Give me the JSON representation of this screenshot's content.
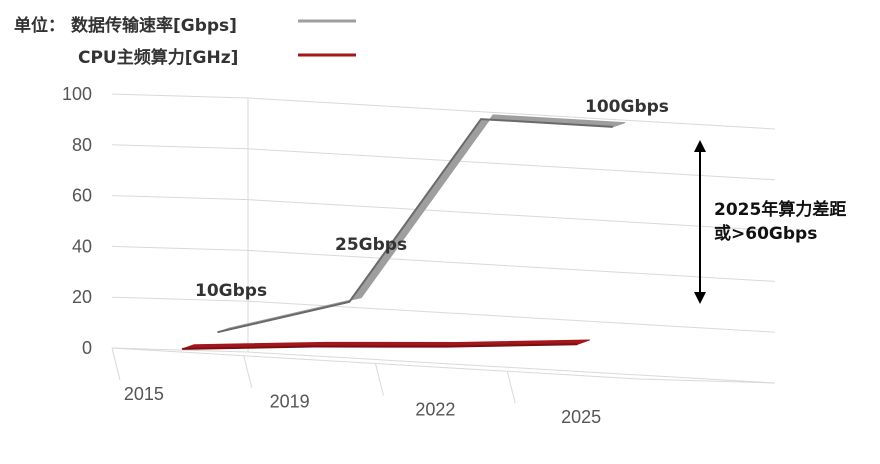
{
  "chart_data": {
    "type": "line",
    "style": "3d-ribbon",
    "unit_label": "单位：",
    "categories": [
      "2015",
      "2019",
      "2022",
      "2025"
    ],
    "series": [
      {
        "name": "数据传输速率[Gbps]",
        "values": [
          10,
          25,
          100,
          100
        ],
        "color": "#9e9e9e"
      },
      {
        "name": "CPU主频算力[GHz]",
        "values": [
          3,
          7,
          10,
          14
        ],
        "color": "#a3161c"
      }
    ],
    "ylim": [
      0,
      100
    ],
    "yticks": [
      "0",
      "20",
      "40",
      "60",
      "80",
      "100"
    ],
    "grid": true,
    "legend_position": "top-left",
    "data_labels": [
      "10Gbps",
      "25Gbps",
      "100Gbps"
    ],
    "annotation": {
      "line1": "2025年算力差距",
      "line2": "或>60Gbps"
    }
  }
}
